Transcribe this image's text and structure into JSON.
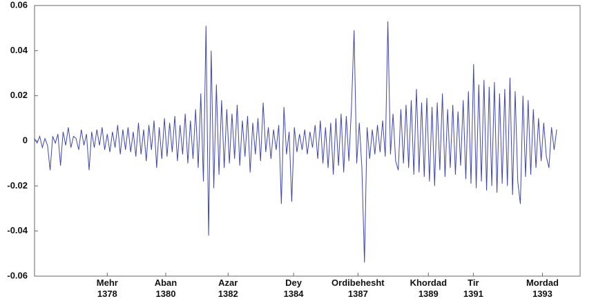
{
  "chart_data": {
    "type": "line",
    "color": "#3f46a6",
    "values": [
      0.001,
      -0.001,
      0.002,
      -0.003,
      0.001,
      -0.002,
      -0.013,
      0.002,
      -0.001,
      0.003,
      -0.011,
      0.004,
      -0.002,
      0.006,
      -0.003,
      0.002,
      0.001,
      -0.004,
      0.005,
      -0.002,
      0.003,
      -0.013,
      0.004,
      -0.003,
      0.005,
      -0.002,
      0.006,
      -0.004,
      0.003,
      -0.005,
      0.004,
      -0.003,
      0.007,
      -0.006,
      0.005,
      -0.004,
      0.006,
      -0.005,
      0.004,
      -0.007,
      0.008,
      -0.006,
      0.005,
      -0.009,
      0.007,
      -0.004,
      0.009,
      -0.012,
      0.006,
      -0.008,
      0.01,
      -0.007,
      0.008,
      -0.005,
      0.011,
      -0.009,
      0.007,
      -0.006,
      0.012,
      -0.01,
      0.009,
      -0.008,
      0.014,
      -0.012,
      0.021,
      -0.018,
      0.051,
      -0.042,
      0.04,
      -0.021,
      0.025,
      -0.015,
      0.018,
      -0.012,
      0.014,
      -0.01,
      0.012,
      -0.008,
      0.016,
      -0.011,
      0.009,
      -0.007,
      0.011,
      -0.014,
      0.008,
      -0.006,
      0.01,
      -0.009,
      0.017,
      -0.005,
      0.006,
      -0.008,
      0.005,
      -0.004,
      0.007,
      -0.028,
      0.015,
      -0.006,
      0.004,
      -0.027,
      0.006,
      -0.005,
      0.003,
      -0.004,
      0.005,
      -0.006,
      0.004,
      -0.003,
      0.007,
      -0.008,
      0.009,
      -0.01,
      0.006,
      -0.012,
      0.008,
      -0.015,
      0.01,
      -0.011,
      0.012,
      -0.014,
      0.011,
      -0.009,
      0.015,
      0.049,
      -0.01,
      0.008,
      -0.012,
      -0.054,
      0.006,
      -0.008,
      0.005,
      -0.006,
      0.007,
      -0.005,
      0.009,
      -0.007,
      0.053,
      -0.006,
      0.012,
      -0.009,
      -0.013,
      0.014,
      -0.01,
      0.016,
      -0.012,
      0.018,
      -0.015,
      0.023,
      -0.014,
      0.017,
      -0.016,
      0.019,
      -0.018,
      0.015,
      -0.02,
      0.017,
      -0.013,
      0.021,
      -0.016,
      0.014,
      -0.012,
      0.016,
      -0.015,
      0.013,
      -0.011,
      0.018,
      -0.017,
      0.022,
      -0.019,
      0.034,
      -0.021,
      0.025,
      -0.018,
      0.027,
      -0.022,
      0.024,
      -0.02,
      0.026,
      -0.023,
      0.021,
      -0.019,
      0.023,
      -0.02,
      0.028,
      -0.024,
      0.022,
      -0.018,
      -0.028,
      0.02,
      -0.016,
      0.018,
      -0.015,
      0.014,
      -0.012,
      0.01,
      -0.009,
      0.008,
      -0.007,
      -0.012,
      0.006,
      -0.004,
      0.005
    ],
    "xlim": [
      0,
      210
    ],
    "xticks": [
      {
        "value": 28,
        "label": "Mehr\n1378"
      },
      {
        "value": 50.5,
        "label": "Aban\n1380"
      },
      {
        "value": 74.5,
        "label": "Azar\n1382"
      },
      {
        "value": 99.7,
        "label": "Dey\n1384"
      },
      {
        "value": 124.5,
        "label": "Ordibehesht\n1387"
      },
      {
        "value": 151.6,
        "label": "Khordad\n1389"
      },
      {
        "value": 168.9,
        "label": "Tir\n1391"
      },
      {
        "value": 195.5,
        "label": "Mordad\n1393"
      }
    ],
    "ylim": [
      -0.06,
      0.06
    ],
    "yticks": [
      0.06,
      0.04,
      0.02,
      0,
      -0.02,
      -0.04,
      -0.06
    ]
  }
}
